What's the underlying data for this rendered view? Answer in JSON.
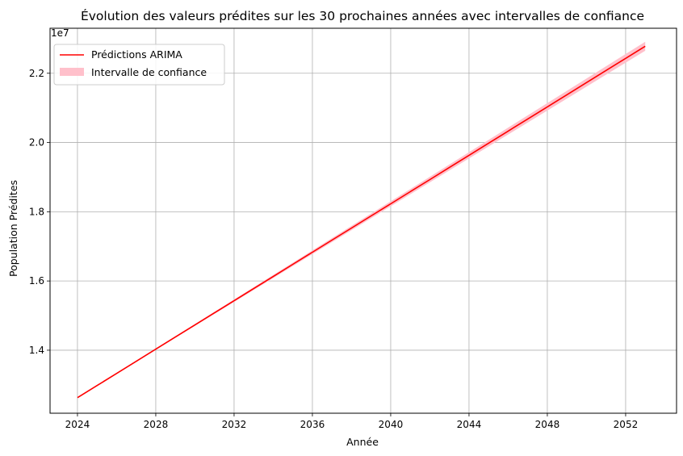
{
  "chart_data": {
    "type": "line",
    "title": "Évolution des valeurs prédites sur les 30 prochaines années avec intervalles de confiance",
    "xlabel": "Année",
    "ylabel": "Population Prédites",
    "y_offset_label": "1e7",
    "xlim": [
      2022.6,
      2054.6
    ],
    "ylim": [
      1.218,
      2.33
    ],
    "y_unit_multiplier": 10000000,
    "x_ticks": [
      2024,
      2028,
      2032,
      2036,
      2040,
      2044,
      2048,
      2052
    ],
    "x_tick_labels": [
      "2024",
      "2028",
      "2032",
      "2036",
      "2040",
      "2044",
      "2048",
      "2052"
    ],
    "y_ticks": [
      1.4,
      1.6,
      1.8,
      2.0,
      2.2
    ],
    "y_tick_labels": [
      "1.4",
      "1.6",
      "1.8",
      "2.0",
      "2.2"
    ],
    "grid": true,
    "legend_position": "top-left",
    "colors": {
      "line": "#ff0000",
      "band": "#ffc0cb"
    },
    "series": [
      {
        "name": "Prédictions ARIMA",
        "kind": "line",
        "x": [
          2024,
          2025,
          2026,
          2027,
          2028,
          2029,
          2030,
          2031,
          2032,
          2033,
          2034,
          2035,
          2036,
          2037,
          2038,
          2039,
          2040,
          2041,
          2042,
          2043,
          2044,
          2045,
          2046,
          2047,
          2048,
          2049,
          2050,
          2051,
          2052,
          2053
        ],
        "values": [
          1.263,
          1.298,
          1.333,
          1.368,
          1.403,
          1.438,
          1.473,
          1.508,
          1.543,
          1.578,
          1.613,
          1.648,
          1.683,
          1.718,
          1.753,
          1.788,
          1.823,
          1.858,
          1.893,
          1.928,
          1.963,
          1.998,
          2.033,
          2.068,
          2.103,
          2.138,
          2.173,
          2.208,
          2.243,
          2.278
        ]
      },
      {
        "name": "Intervalle de confiance",
        "kind": "band",
        "x": [
          2024,
          2053
        ],
        "lower": [
          1.263,
          2.265
        ],
        "upper": [
          1.263,
          2.291
        ]
      }
    ]
  }
}
